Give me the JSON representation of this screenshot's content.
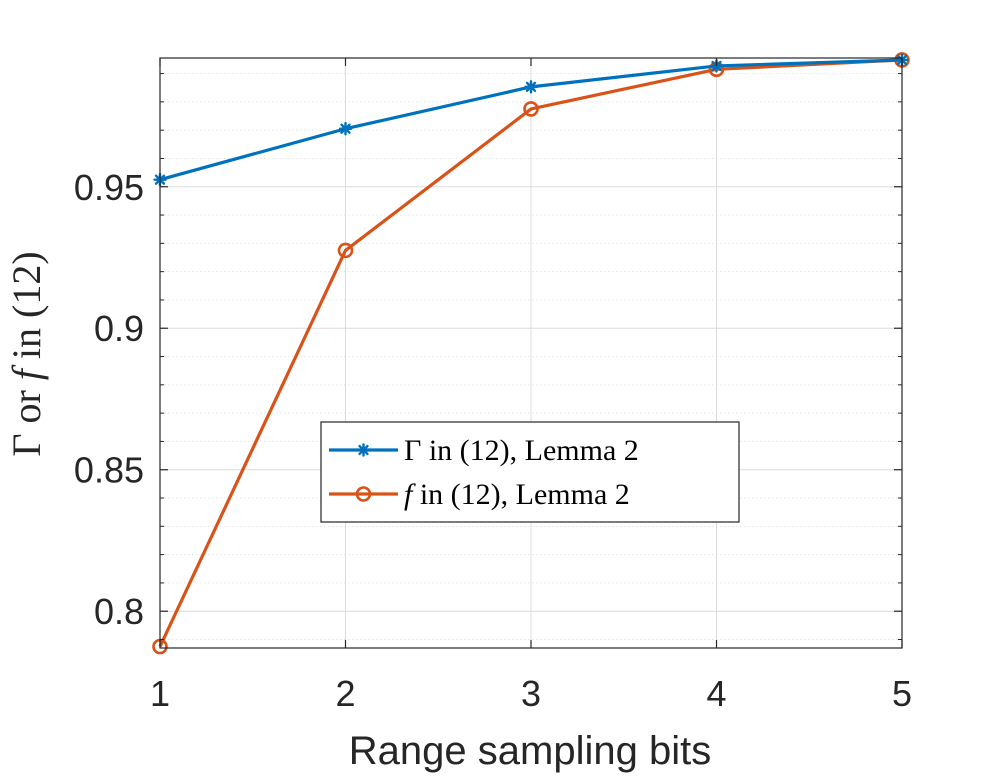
{
  "chart_data": {
    "type": "line",
    "title": "",
    "xlabel": "Range sampling bits",
    "ylabel": {
      "prefix": "Γ or ",
      "var": "f",
      "suffix": " in (12)"
    },
    "x": [
      1,
      2,
      3,
      4,
      5
    ],
    "xlim": [
      1,
      5
    ],
    "ylim": [
      0.787,
      0.9955
    ],
    "xticks": [
      1,
      2,
      3,
      4,
      5
    ],
    "xtick_labels": [
      "1",
      "2",
      "3",
      "4",
      "5"
    ],
    "yticks": [
      0.8,
      0.85,
      0.9,
      0.95
    ],
    "ytick_labels": [
      "0.8",
      "0.85",
      "0.9",
      "0.95"
    ],
    "grid": true,
    "minor_grid": true,
    "legend_position": "center",
    "series": [
      {
        "name": "Γ in (12), Lemma 2",
        "legend_var": "Γ",
        "legend_rest": " in (12), Lemma 2",
        "legend_italic": false,
        "color": "#0072BD",
        "marker": "asterisk",
        "values": [
          0.9525,
          0.9705,
          0.9853,
          0.9927,
          0.9948
        ]
      },
      {
        "name": "f in (12), Lemma 2",
        "legend_var": "f",
        "legend_rest": " in (12), Lemma 2",
        "legend_italic": true,
        "color": "#D95319",
        "marker": "circle",
        "values": [
          0.7875,
          0.9275,
          0.9775,
          0.9915,
          0.9948
        ]
      }
    ]
  }
}
